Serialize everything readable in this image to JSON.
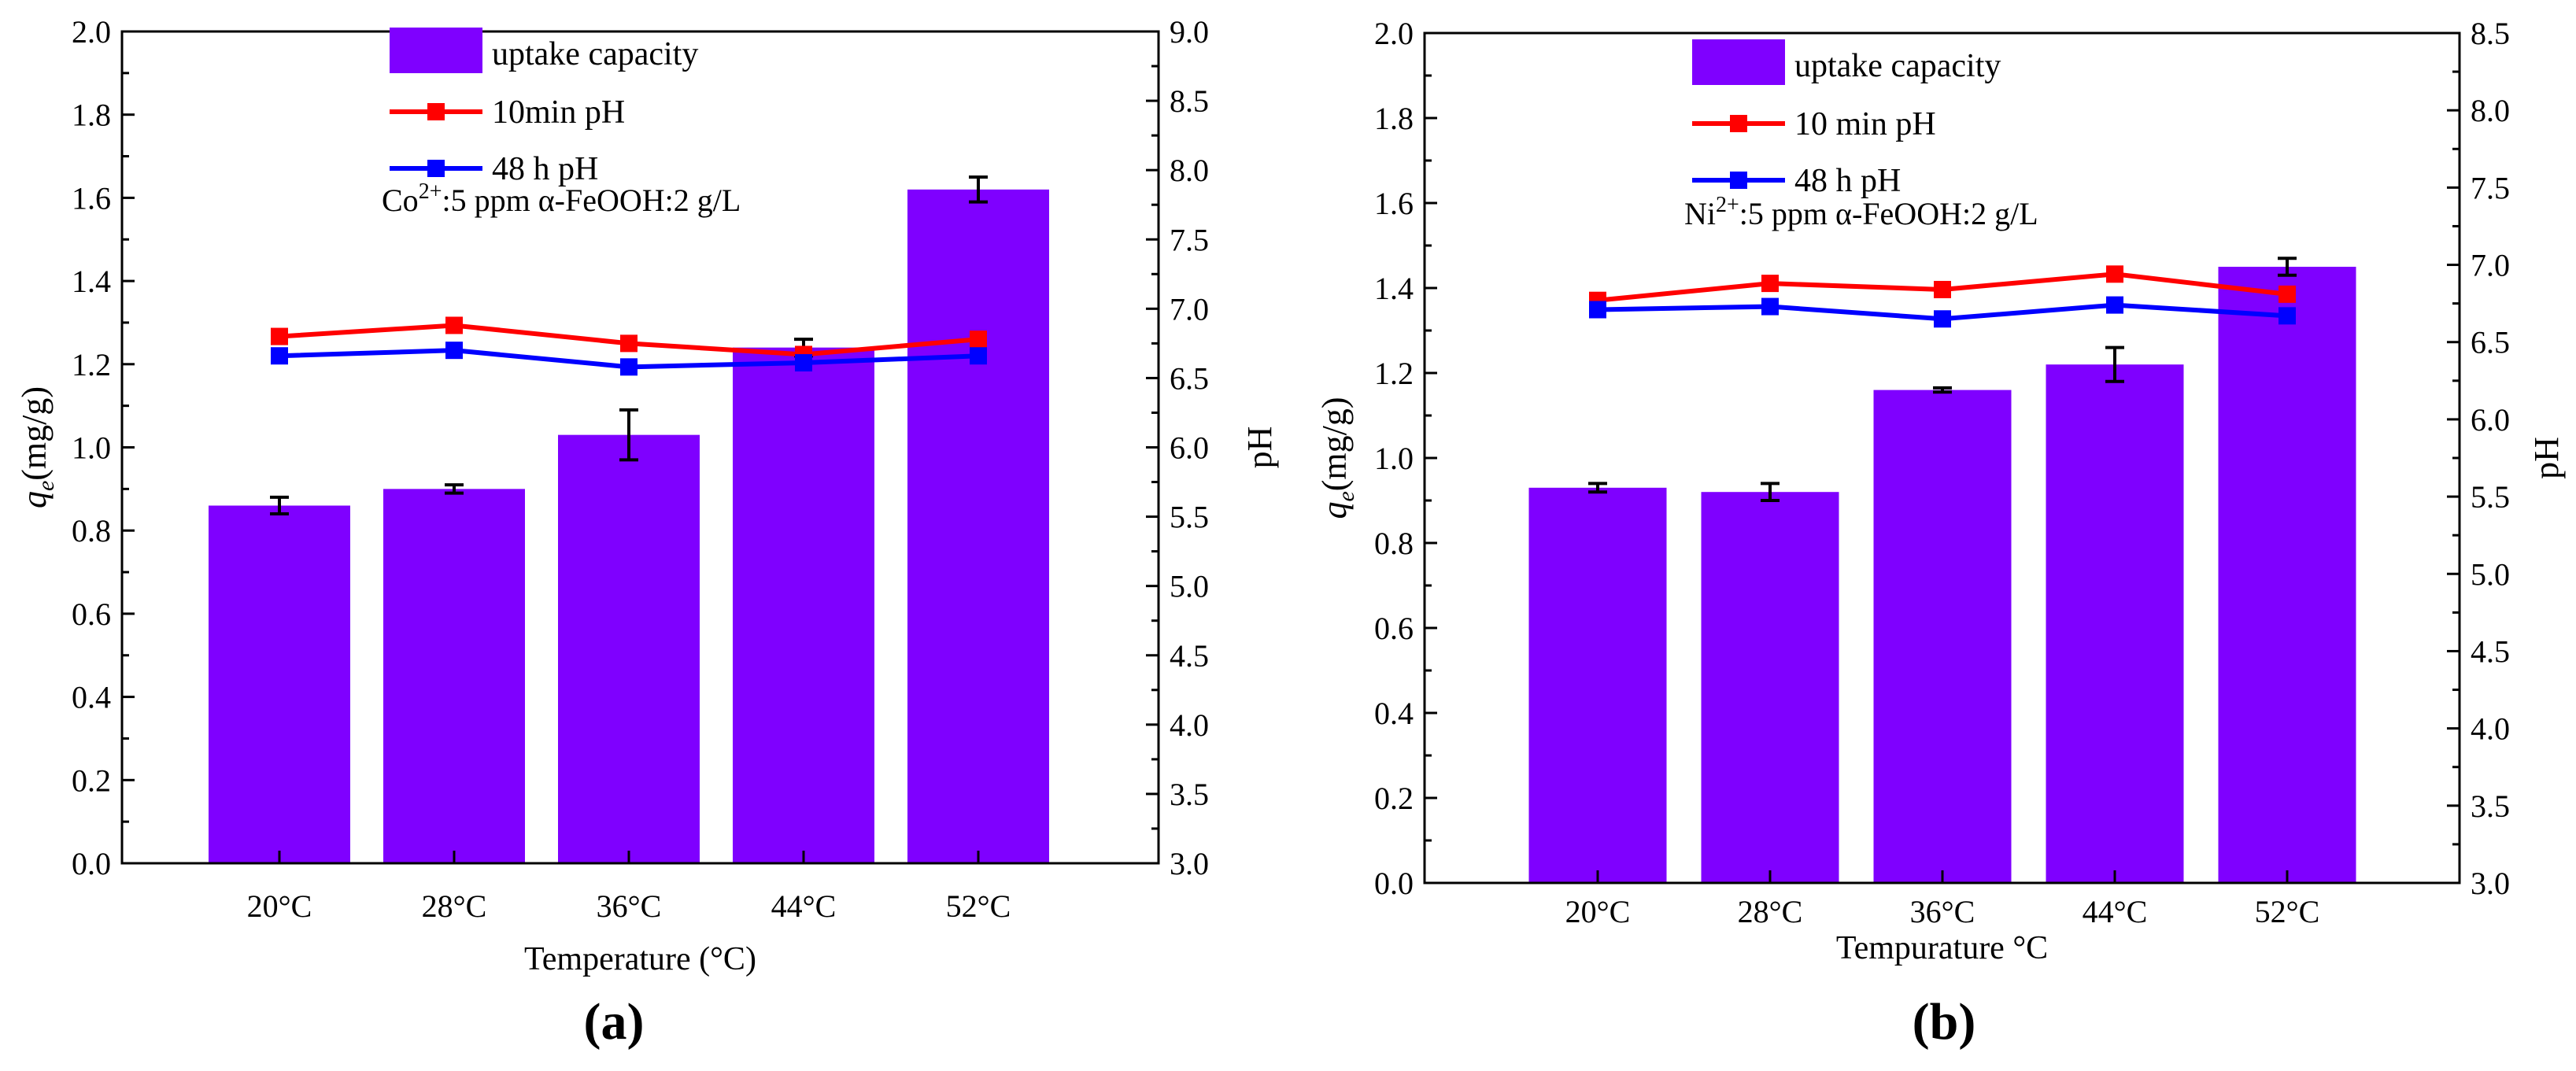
{
  "colors": {
    "bar": "#7f00ff",
    "line_10min": "#ff0000",
    "line_48h": "#0000ff",
    "axis": "#000000"
  },
  "chart_data": [
    {
      "panel_label": "(a)",
      "type": "bar+line",
      "xlabel": "Temperature (°C)",
      "ylabel_left_main": "q",
      "ylabel_left_sub": "e",
      "ylabel_left_unit": "(mg/g)",
      "ylabel_right": "pH",
      "categories": [
        "20°C",
        "28°C",
        "36°C",
        "44°C",
        "52°C"
      ],
      "ylim_left": [
        0,
        2.0
      ],
      "yticks_left": [
        "0.0",
        "0.2",
        "0.4",
        "0.6",
        "0.8",
        "1.0",
        "1.2",
        "1.4",
        "1.6",
        "1.8",
        "2.0"
      ],
      "ylim_right": [
        3.0,
        9.0
      ],
      "yticks_right": [
        "3.0",
        "3.5",
        "4.0",
        "4.5",
        "5.0",
        "5.5",
        "6.0",
        "6.5",
        "7.0",
        "7.5",
        "8.0",
        "8.5",
        "9.0"
      ],
      "bars": {
        "name": "uptake capacity",
        "values": [
          0.86,
          0.9,
          1.03,
          1.24,
          1.62
        ],
        "errors": [
          0.02,
          0.01,
          0.06,
          0.02,
          0.03
        ]
      },
      "series": [
        {
          "name": "10min pH",
          "values": [
            6.8,
            6.88,
            6.75,
            6.67,
            6.78
          ],
          "errors": [
            0.02,
            0.02,
            0.02,
            0.03,
            0.02
          ]
        },
        {
          "name": "48 h pH",
          "values": [
            6.66,
            6.7,
            6.58,
            6.61,
            6.66
          ],
          "errors": [
            0.02,
            0.05,
            0.02,
            0.02,
            0.02
          ]
        }
      ],
      "annotation": {
        "prefix": "Co",
        "superscript": "2+",
        "rest": ":5 ppm α-FeOOH:2 g/L"
      },
      "legend_position": "top-center"
    },
    {
      "panel_label": "(b)",
      "type": "bar+line",
      "xlabel": "Tempuraturе °C",
      "ylabel_left_main": "q",
      "ylabel_left_sub": "e",
      "ylabel_left_unit": "(mg/g)",
      "ylabel_right": "pH",
      "categories": [
        "20°C",
        "28°C",
        "36°C",
        "44°C",
        "52°C"
      ],
      "ylim_left": [
        0,
        2.0
      ],
      "yticks_left": [
        "0.0",
        "0.2",
        "0.4",
        "0.6",
        "0.8",
        "1.0",
        "1.2",
        "1.4",
        "1.6",
        "1.8",
        "2.0"
      ],
      "ylim_right": [
        3.0,
        8.5
      ],
      "yticks_right": [
        "3.0",
        "3.5",
        "4.0",
        "4.5",
        "5.0",
        "5.5",
        "6.0",
        "6.5",
        "7.0",
        "7.5",
        "8.0",
        "8.5"
      ],
      "bars": {
        "name": "uptake capacity",
        "values": [
          0.93,
          0.92,
          1.16,
          1.22,
          1.45
        ],
        "errors": [
          0.01,
          0.02,
          0.005,
          0.04,
          0.02
        ]
      },
      "series": [
        {
          "name": "10 min pH",
          "values": [
            6.77,
            6.88,
            6.84,
            6.94,
            6.81
          ],
          "errors": [
            0.02,
            0.04,
            0.02,
            0.03,
            0.02
          ]
        },
        {
          "name": "48 h pH",
          "values": [
            6.71,
            6.73,
            6.65,
            6.74,
            6.67
          ],
          "errors": [
            0.02,
            0.02,
            0.02,
            0.02,
            0.02
          ]
        }
      ],
      "annotation": {
        "prefix": "Ni",
        "superscript": "2+",
        "rest": ":5 ppm α-FeOOH:2 g/L"
      },
      "legend_position": "top-center"
    }
  ]
}
